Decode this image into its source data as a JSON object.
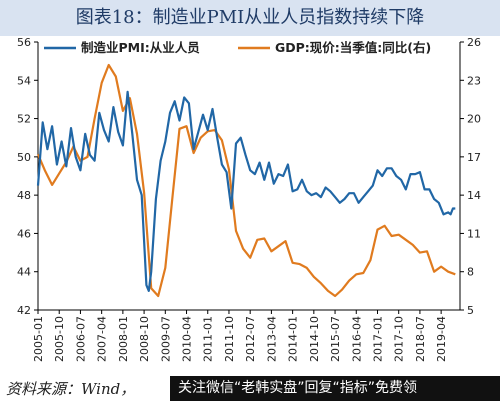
{
  "figure": {
    "title": "图表18：制造业PMI从业人员指数持续下降",
    "source": "资料来源：Wind，",
    "promo": "关注微信“老韩实盘”回复“指标”免费领"
  },
  "chart_data": {
    "type": "line",
    "colors": {
      "pmi": "#2167a6",
      "gdp": "#e07b1f",
      "axis": "#000000"
    },
    "legend_position": "top",
    "grid": false,
    "yleft": {
      "range": [
        42,
        56
      ],
      "ticks": [
        42,
        44,
        46,
        48,
        50,
        52,
        54,
        56
      ]
    },
    "yright": {
      "range": [
        5,
        26
      ],
      "ticks": [
        5,
        8,
        11,
        14,
        17,
        20,
        23,
        26
      ]
    },
    "x_ticks": [
      "2005-01",
      "2005-10",
      "2006-07",
      "2007-04",
      "2008-01",
      "2008-10",
      "2009-07",
      "2010-04",
      "2011-01",
      "2011-10",
      "2012-07",
      "2013-04",
      "2014-01",
      "2014-10",
      "2015-07",
      "2016-04",
      "2017-01",
      "2017-10",
      "2018-07",
      "2019-04"
    ],
    "series": [
      {
        "name": "制造业PMI:从业人员",
        "axis": "left",
        "points": [
          [
            "2005-01",
            48.5
          ],
          [
            "2005-03",
            51.8
          ],
          [
            "2005-05",
            50.4
          ],
          [
            "2005-07",
            51.6
          ],
          [
            "2005-09",
            49.6
          ],
          [
            "2005-11",
            50.8
          ],
          [
            "2006-01",
            49.5
          ],
          [
            "2006-03",
            51.5
          ],
          [
            "2006-05",
            50.0
          ],
          [
            "2006-07",
            49.3
          ],
          [
            "2006-09",
            51.2
          ],
          [
            "2006-11",
            50.1
          ],
          [
            "2007-01",
            49.8
          ],
          [
            "2007-03",
            52.3
          ],
          [
            "2007-05",
            51.4
          ],
          [
            "2007-07",
            50.8
          ],
          [
            "2007-09",
            52.6
          ],
          [
            "2007-11",
            51.3
          ],
          [
            "2008-01",
            50.6
          ],
          [
            "2008-03",
            53.4
          ],
          [
            "2008-05",
            51.2
          ],
          [
            "2008-07",
            48.8
          ],
          [
            "2008-09",
            48.0
          ],
          [
            "2008-10",
            45.6
          ],
          [
            "2008-11",
            43.3
          ],
          [
            "2008-12",
            43.0
          ],
          [
            "2009-01",
            44.0
          ],
          [
            "2009-03",
            47.8
          ],
          [
            "2009-05",
            49.8
          ],
          [
            "2009-07",
            50.8
          ],
          [
            "2009-09",
            52.3
          ],
          [
            "2009-11",
            52.9
          ],
          [
            "2010-01",
            51.9
          ],
          [
            "2010-03",
            53.1
          ],
          [
            "2010-05",
            52.8
          ],
          [
            "2010-07",
            50.4
          ],
          [
            "2010-09",
            51.3
          ],
          [
            "2010-11",
            52.2
          ],
          [
            "2011-01",
            51.4
          ],
          [
            "2011-03",
            52.5
          ],
          [
            "2011-05",
            51.0
          ],
          [
            "2011-07",
            49.6
          ],
          [
            "2011-09",
            49.2
          ],
          [
            "2011-11",
            47.3
          ],
          [
            "2012-01",
            50.7
          ],
          [
            "2012-03",
            51.0
          ],
          [
            "2012-05",
            50.1
          ],
          [
            "2012-07",
            49.3
          ],
          [
            "2012-09",
            49.1
          ],
          [
            "2012-11",
            49.7
          ],
          [
            "2013-01",
            48.8
          ],
          [
            "2013-03",
            49.7
          ],
          [
            "2013-05",
            48.6
          ],
          [
            "2013-07",
            49.1
          ],
          [
            "2013-09",
            49.0
          ],
          [
            "2013-11",
            49.6
          ],
          [
            "2014-01",
            48.2
          ],
          [
            "2014-03",
            48.3
          ],
          [
            "2014-05",
            48.8
          ],
          [
            "2014-07",
            48.2
          ],
          [
            "2014-09",
            48.0
          ],
          [
            "2014-11",
            48.1
          ],
          [
            "2015-01",
            47.9
          ],
          [
            "2015-03",
            48.4
          ],
          [
            "2015-05",
            48.2
          ],
          [
            "2015-07",
            47.9
          ],
          [
            "2015-09",
            47.6
          ],
          [
            "2015-11",
            47.8
          ],
          [
            "2016-01",
            48.1
          ],
          [
            "2016-03",
            48.1
          ],
          [
            "2016-05",
            47.6
          ],
          [
            "2016-07",
            47.9
          ],
          [
            "2016-09",
            48.2
          ],
          [
            "2016-11",
            48.5
          ],
          [
            "2017-01",
            49.3
          ],
          [
            "2017-03",
            49.0
          ],
          [
            "2017-05",
            49.4
          ],
          [
            "2017-07",
            49.4
          ],
          [
            "2017-09",
            49.0
          ],
          [
            "2017-11",
            48.8
          ],
          [
            "2018-01",
            48.3
          ],
          [
            "2018-03",
            49.1
          ],
          [
            "2018-05",
            49.1
          ],
          [
            "2018-07",
            49.2
          ],
          [
            "2018-09",
            48.3
          ],
          [
            "2018-11",
            48.3
          ],
          [
            "2019-01",
            47.8
          ],
          [
            "2019-03",
            47.6
          ],
          [
            "2019-05",
            47.0
          ],
          [
            "2019-07",
            47.1
          ],
          [
            "2019-08",
            47.0
          ],
          [
            "2019-09",
            47.3
          ],
          [
            "2019-10",
            47.3
          ]
        ]
      },
      {
        "name": "GDP:现价:当季值:同比(右)",
        "axis": "right",
        "points": [
          [
            "2005-01",
            17.2
          ],
          [
            "2005-04",
            15.9
          ],
          [
            "2005-07",
            14.8
          ],
          [
            "2005-10",
            15.7
          ],
          [
            "2006-01",
            16.6
          ],
          [
            "2006-04",
            17.8
          ],
          [
            "2006-07",
            16.7
          ],
          [
            "2006-10",
            17.0
          ],
          [
            "2007-01",
            20.0
          ],
          [
            "2007-04",
            22.8
          ],
          [
            "2007-07",
            24.2
          ],
          [
            "2007-10",
            23.3
          ],
          [
            "2008-01",
            20.6
          ],
          [
            "2008-04",
            21.6
          ],
          [
            "2008-07",
            18.8
          ],
          [
            "2008-10",
            14.2
          ],
          [
            "2009-01",
            6.7
          ],
          [
            "2009-04",
            6.1
          ],
          [
            "2009-07",
            8.3
          ],
          [
            "2009-10",
            13.8
          ],
          [
            "2010-01",
            19.2
          ],
          [
            "2010-04",
            19.4
          ],
          [
            "2010-07",
            17.3
          ],
          [
            "2010-10",
            18.5
          ],
          [
            "2011-01",
            19.0
          ],
          [
            "2011-04",
            19.1
          ],
          [
            "2011-07",
            18.3
          ],
          [
            "2011-10",
            16.0
          ],
          [
            "2012-01",
            11.2
          ],
          [
            "2012-04",
            9.8
          ],
          [
            "2012-07",
            9.1
          ],
          [
            "2012-10",
            10.5
          ],
          [
            "2013-01",
            10.6
          ],
          [
            "2013-04",
            9.6
          ],
          [
            "2013-07",
            10.0
          ],
          [
            "2013-10",
            10.4
          ],
          [
            "2014-01",
            8.7
          ],
          [
            "2014-04",
            8.6
          ],
          [
            "2014-07",
            8.3
          ],
          [
            "2014-10",
            7.6
          ],
          [
            "2015-01",
            7.1
          ],
          [
            "2015-04",
            6.5
          ],
          [
            "2015-07",
            6.1
          ],
          [
            "2015-10",
            6.6
          ],
          [
            "2016-01",
            7.3
          ],
          [
            "2016-04",
            7.8
          ],
          [
            "2016-07",
            7.9
          ],
          [
            "2016-10",
            8.9
          ],
          [
            "2017-01",
            11.3
          ],
          [
            "2017-04",
            11.6
          ],
          [
            "2017-07",
            10.8
          ],
          [
            "2017-10",
            10.9
          ],
          [
            "2018-01",
            10.5
          ],
          [
            "2018-04",
            10.1
          ],
          [
            "2018-07",
            9.5
          ],
          [
            "2018-10",
            9.6
          ],
          [
            "2019-01",
            8.0
          ],
          [
            "2019-04",
            8.4
          ],
          [
            "2019-07",
            8.0
          ],
          [
            "2019-10",
            7.8
          ]
        ]
      }
    ]
  }
}
